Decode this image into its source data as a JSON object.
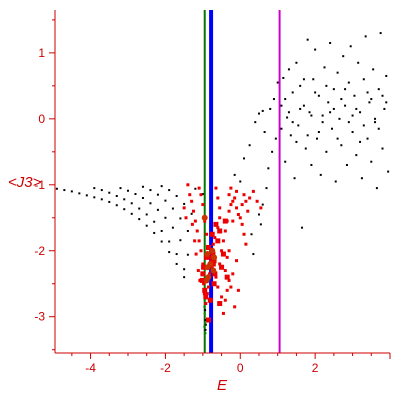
{
  "chart_data": {
    "type": "scatter",
    "title": "",
    "xlabel": "E",
    "ylabel": "<J3>",
    "xlim": [
      -4.95,
      4.0
    ],
    "ylim": [
      -3.55,
      1.65
    ],
    "grid": false,
    "x_ticks": [
      -4,
      -2,
      0,
      2
    ],
    "x_tick_labels": [
      "-4",
      "-2",
      "0",
      "2"
    ],
    "y_ticks": [
      1,
      0,
      -1,
      -2,
      -3
    ],
    "y_tick_labels": [
      "1",
      "0",
      "-1",
      "-2",
      "-3"
    ],
    "axis_color": "#cc0000",
    "vertical_lines": [
      {
        "x": -0.95,
        "color": "#007700",
        "width": "thin"
      },
      {
        "x": -0.78,
        "color": "#0000ff",
        "width": "thick"
      },
      {
        "x": 1.05,
        "color": "#cc00cc",
        "width": "thin"
      }
    ],
    "series": [
      {
        "color": "#000000",
        "marker": "dot",
        "points": [
          [
            -4.9,
            -1.06
          ],
          [
            -4.7,
            -1.08
          ],
          [
            -4.5,
            -1.1
          ],
          [
            -4.3,
            -1.13
          ],
          [
            -4.1,
            -1.16
          ],
          [
            -3.9,
            -1.19
          ],
          [
            -3.7,
            -1.22
          ],
          [
            -3.5,
            -1.26
          ],
          [
            -3.3,
            -1.31
          ],
          [
            -3.1,
            -1.37
          ],
          [
            -2.9,
            -1.44
          ],
          [
            -2.7,
            -1.52
          ],
          [
            -2.5,
            -1.62
          ],
          [
            -2.3,
            -1.73
          ],
          [
            -2.1,
            -1.86
          ],
          [
            -1.9,
            -2.02
          ],
          [
            -1.7,
            -2.2
          ],
          [
            -1.5,
            -2.4
          ],
          [
            -3.9,
            -1.05
          ],
          [
            -3.7,
            -1.08
          ],
          [
            -3.5,
            -1.12
          ],
          [
            -3.3,
            -1.17
          ],
          [
            -3.1,
            -1.22
          ],
          [
            -2.9,
            -1.28
          ],
          [
            -2.7,
            -1.36
          ],
          [
            -2.5,
            -1.45
          ],
          [
            -2.3,
            -1.56
          ],
          [
            -2.1,
            -1.7
          ],
          [
            -1.9,
            -1.86
          ],
          [
            -1.7,
            -2.05
          ],
          [
            -1.5,
            -2.28
          ],
          [
            -3.2,
            -1.05
          ],
          [
            -3.0,
            -1.09
          ],
          [
            -2.8,
            -1.14
          ],
          [
            -2.6,
            -1.2
          ],
          [
            -2.4,
            -1.28
          ],
          [
            -2.2,
            -1.38
          ],
          [
            -2.0,
            -1.5
          ],
          [
            -1.8,
            -1.65
          ],
          [
            -1.6,
            -1.84
          ],
          [
            -1.4,
            -2.06
          ],
          [
            -2.6,
            -1.03
          ],
          [
            -2.4,
            -1.08
          ],
          [
            -2.2,
            -1.15
          ],
          [
            -2.0,
            -1.24
          ],
          [
            -1.8,
            -1.36
          ],
          [
            -1.6,
            -1.51
          ],
          [
            -1.4,
            -1.7
          ],
          [
            -2.1,
            -1.02
          ],
          [
            -1.9,
            -1.08
          ],
          [
            -1.7,
            -1.17
          ],
          [
            -1.5,
            -1.29
          ],
          [
            -1.3,
            -1.44
          ],
          [
            -1.4,
            -1.0
          ],
          [
            -1.2,
            -1.06
          ],
          [
            -1.0,
            -1.14
          ],
          [
            -0.93,
            -3.05
          ],
          [
            -0.92,
            -3.12
          ],
          [
            -0.93,
            -3.2
          ],
          [
            -0.94,
            -2.9
          ],
          [
            -0.15,
            -0.85
          ],
          [
            0.0,
            -0.95
          ],
          [
            0.1,
            -0.6
          ],
          [
            0.25,
            -0.4
          ],
          [
            0.3,
            -1.75
          ],
          [
            0.35,
            -2.05
          ],
          [
            0.5,
            -1.45
          ],
          [
            0.55,
            -1.6
          ],
          [
            0.6,
            -1.3
          ],
          [
            0.7,
            -1.05
          ],
          [
            0.75,
            -0.75
          ],
          [
            0.85,
            -0.5
          ],
          [
            0.95,
            -0.3
          ],
          [
            0.4,
            -0.05
          ],
          [
            0.5,
            0.08
          ],
          [
            0.6,
            0.12
          ],
          [
            0.65,
            -0.2
          ],
          [
            0.8,
            0.15
          ],
          [
            0.9,
            0.3
          ],
          [
            1.0,
            0.55
          ],
          [
            1.1,
            0.2
          ],
          [
            1.15,
            0.62
          ],
          [
            1.2,
            -0.65
          ],
          [
            1.25,
            0.02
          ],
          [
            1.3,
            0.75
          ],
          [
            1.35,
            -0.25
          ],
          [
            1.4,
            0.4
          ],
          [
            1.45,
            -0.9
          ],
          [
            1.5,
            0.85
          ],
          [
            1.55,
            -0.1
          ],
          [
            1.6,
            0.5
          ],
          [
            1.65,
            -1.65
          ],
          [
            1.7,
            0.2
          ],
          [
            1.75,
            -0.45
          ],
          [
            1.8,
            1.2
          ],
          [
            1.85,
            0.1
          ],
          [
            1.9,
            -0.7
          ],
          [
            1.95,
            0.6
          ],
          [
            2.0,
            1.05
          ],
          [
            2.05,
            -0.3
          ],
          [
            2.1,
            0.35
          ],
          [
            2.15,
            -0.85
          ],
          [
            2.2,
            0.05
          ],
          [
            2.25,
            0.78
          ],
          [
            2.3,
            -0.5
          ],
          [
            2.35,
            0.25
          ],
          [
            2.4,
            1.15
          ],
          [
            2.45,
            -0.15
          ],
          [
            2.5,
            0.45
          ],
          [
            2.55,
            -0.95
          ],
          [
            2.6,
            0.7
          ],
          [
            2.65,
            0.0
          ],
          [
            2.7,
            -0.4
          ],
          [
            2.75,
            0.95
          ],
          [
            2.8,
            0.2
          ],
          [
            2.85,
            -0.7
          ],
          [
            2.9,
            0.55
          ],
          [
            2.95,
            1.1
          ],
          [
            3.0,
            -0.2
          ],
          [
            3.05,
            0.35
          ],
          [
            3.1,
            -0.55
          ],
          [
            3.15,
            0.85
          ],
          [
            3.2,
            0.1
          ],
          [
            3.25,
            -0.9
          ],
          [
            3.3,
            0.6
          ],
          [
            3.35,
            1.25
          ],
          [
            3.4,
            -0.3
          ],
          [
            3.45,
            0.25
          ],
          [
            3.5,
            -0.65
          ],
          [
            3.55,
            0.75
          ],
          [
            3.6,
            0.0
          ],
          [
            3.65,
            -1.05
          ],
          [
            3.7,
            0.45
          ],
          [
            3.75,
            1.3
          ],
          [
            3.8,
            -0.45
          ],
          [
            3.85,
            0.15
          ],
          [
            3.9,
            0.65
          ],
          [
            3.95,
            -0.8
          ],
          [
            1.1,
            -0.15
          ],
          [
            1.3,
            0.1
          ],
          [
            1.5,
            -0.35
          ],
          [
            1.7,
            0.6
          ],
          [
            1.9,
            0.05
          ],
          [
            2.1,
            -0.2
          ],
          [
            2.3,
            0.5
          ],
          [
            2.5,
            0.15
          ],
          [
            2.7,
            0.3
          ],
          [
            2.9,
            -0.05
          ],
          [
            3.1,
            0.15
          ],
          [
            3.3,
            -0.1
          ],
          [
            3.5,
            0.3
          ],
          [
            3.7,
            -0.15
          ],
          [
            3.9,
            0.25
          ],
          [
            1.2,
            0.3
          ],
          [
            1.4,
            -0.05
          ],
          [
            1.6,
            0.15
          ],
          [
            1.8,
            -0.25
          ],
          [
            2.0,
            0.4
          ],
          [
            2.2,
            -0.05
          ],
          [
            2.4,
            0.1
          ],
          [
            2.6,
            -0.3
          ],
          [
            2.8,
            0.45
          ],
          [
            3.0,
            0.05
          ],
          [
            3.2,
            -0.35
          ],
          [
            3.4,
            0.4
          ],
          [
            3.6,
            -0.05
          ],
          [
            3.8,
            0.35
          ]
        ]
      },
      {
        "color": "#ee0000",
        "marker": "square",
        "points": [
          [
            -1.1,
            -1.05
          ],
          [
            -1.05,
            -1.15
          ],
          [
            -1.0,
            -1.3
          ],
          [
            -0.95,
            -1.55
          ],
          [
            -0.9,
            -1.75
          ],
          [
            -0.85,
            -1.95
          ],
          [
            -0.8,
            -2.1
          ],
          [
            -0.75,
            -2.25
          ],
          [
            -0.7,
            -2.3
          ],
          [
            -0.65,
            -2.4
          ],
          [
            -0.6,
            -2.55
          ],
          [
            -0.55,
            -2.2
          ],
          [
            -0.5,
            -2.0
          ],
          [
            -0.45,
            -1.85
          ],
          [
            -0.4,
            -1.7
          ],
          [
            -0.35,
            -1.55
          ],
          [
            -0.3,
            -1.4
          ],
          [
            -0.25,
            -1.3
          ],
          [
            -0.2,
            -1.25
          ],
          [
            -0.15,
            -1.2
          ],
          [
            -0.1,
            -1.35
          ],
          [
            -0.05,
            -1.45
          ],
          [
            0.0,
            -1.5
          ],
          [
            0.05,
            -1.3
          ],
          [
            0.1,
            -1.15
          ],
          [
            0.15,
            -1.25
          ],
          [
            0.2,
            -1.4
          ],
          [
            -0.92,
            -2.8
          ],
          [
            -0.88,
            -2.65
          ],
          [
            -0.85,
            -2.55
          ],
          [
            -0.82,
            -2.35
          ],
          [
            -0.78,
            -2.15
          ],
          [
            -0.75,
            -2.05
          ],
          [
            -0.72,
            -1.9
          ],
          [
            -0.68,
            -1.8
          ],
          [
            -0.6,
            -1.65
          ],
          [
            -0.55,
            -1.5
          ],
          [
            -0.5,
            -2.7
          ],
          [
            -0.45,
            -2.95
          ],
          [
            -0.4,
            -2.75
          ],
          [
            -0.35,
            -2.6
          ],
          [
            -0.3,
            -2.45
          ],
          [
            -0.25,
            -2.55
          ],
          [
            -0.2,
            -2.35
          ],
          [
            -0.15,
            -2.85
          ],
          [
            -0.1,
            -2.15
          ],
          [
            -0.05,
            -2.6
          ],
          [
            -1.3,
            -1.25
          ],
          [
            -1.25,
            -1.4
          ],
          [
            -1.2,
            -1.55
          ],
          [
            -1.15,
            -1.7
          ],
          [
            -1.1,
            -1.85
          ],
          [
            -1.05,
            -2.0
          ],
          [
            -1.0,
            -2.2
          ],
          [
            -1.02,
            -2.35
          ],
          [
            -0.98,
            -2.5
          ],
          [
            -0.96,
            -2.65
          ],
          [
            -1.35,
            -1.15
          ],
          [
            -1.28,
            -1.6
          ],
          [
            -1.22,
            -1.85
          ],
          [
            -1.18,
            -2.05
          ],
          [
            -1.12,
            -2.3
          ],
          [
            -1.08,
            -2.45
          ],
          [
            -0.3,
            -1.15
          ],
          [
            -0.25,
            -1.05
          ],
          [
            -0.2,
            -1.55
          ],
          [
            -0.1,
            -1.1
          ],
          [
            0.05,
            -1.6
          ],
          [
            0.25,
            -1.2
          ],
          [
            0.35,
            -1.1
          ],
          [
            0.45,
            -1.25
          ],
          [
            0.55,
            -1.35
          ],
          [
            -1.5,
            -1.35
          ],
          [
            -1.45,
            -1.5
          ],
          [
            -1.4,
            -1.0
          ],
          [
            -0.65,
            -1.05
          ],
          [
            -0.6,
            -1.2
          ],
          [
            -0.55,
            -1.35
          ],
          [
            -0.4,
            -2.3
          ],
          [
            -0.35,
            -2.1
          ],
          [
            -0.3,
            -2.0
          ],
          [
            0.1,
            -1.75
          ],
          [
            0.15,
            -1.9
          ]
        ]
      },
      {
        "color": "#ee0000",
        "marker": "square-large",
        "points": [
          [
            -0.75,
            -1.75
          ],
          [
            -0.73,
            -2.05
          ],
          [
            -0.72,
            -2.2
          ],
          [
            -0.7,
            -2.15
          ],
          [
            -0.68,
            -2.35
          ],
          [
            -0.85,
            -1.95
          ],
          [
            -0.9,
            -2.1
          ],
          [
            -0.98,
            -2.25
          ],
          [
            -1.0,
            -2.35
          ],
          [
            -1.02,
            -2.45
          ],
          [
            -0.95,
            -2.6
          ],
          [
            -0.92,
            -2.7
          ],
          [
            -0.5,
            -2.25
          ],
          [
            -0.45,
            -2.05
          ],
          [
            -0.6,
            -1.85
          ],
          [
            -0.55,
            -1.7
          ],
          [
            -0.4,
            -1.55
          ],
          [
            -0.35,
            -2.4
          ],
          [
            -0.8,
            -2.75
          ],
          [
            -0.85,
            -3.05
          ],
          [
            -0.7,
            -2.5
          ],
          [
            -0.65,
            -1.6
          ],
          [
            -0.55,
            -2.8
          ]
        ]
      },
      {
        "color": "#cc3300",
        "marker": "circle",
        "points": [
          [
            -0.95,
            -1.5
          ],
          [
            -0.87,
            -2.25
          ],
          [
            -0.85,
            -2.4
          ],
          [
            -0.8,
            -2.2
          ],
          [
            -0.75,
            -2.0
          ],
          [
            -0.72,
            -2.3
          ],
          [
            -0.7,
            -2.1
          ],
          [
            -0.9,
            -2.45
          ],
          [
            -0.88,
            -2.05
          ]
        ]
      },
      {
        "color": "#008800",
        "marker": "dot",
        "points": [
          [
            -0.96,
            -2.85
          ],
          [
            -0.95,
            -2.95
          ],
          [
            -0.94,
            -3.1
          ],
          [
            -0.96,
            -3.15
          ],
          [
            -0.93,
            -3.25
          ],
          [
            -0.95,
            -2.75
          ]
        ]
      }
    ]
  }
}
